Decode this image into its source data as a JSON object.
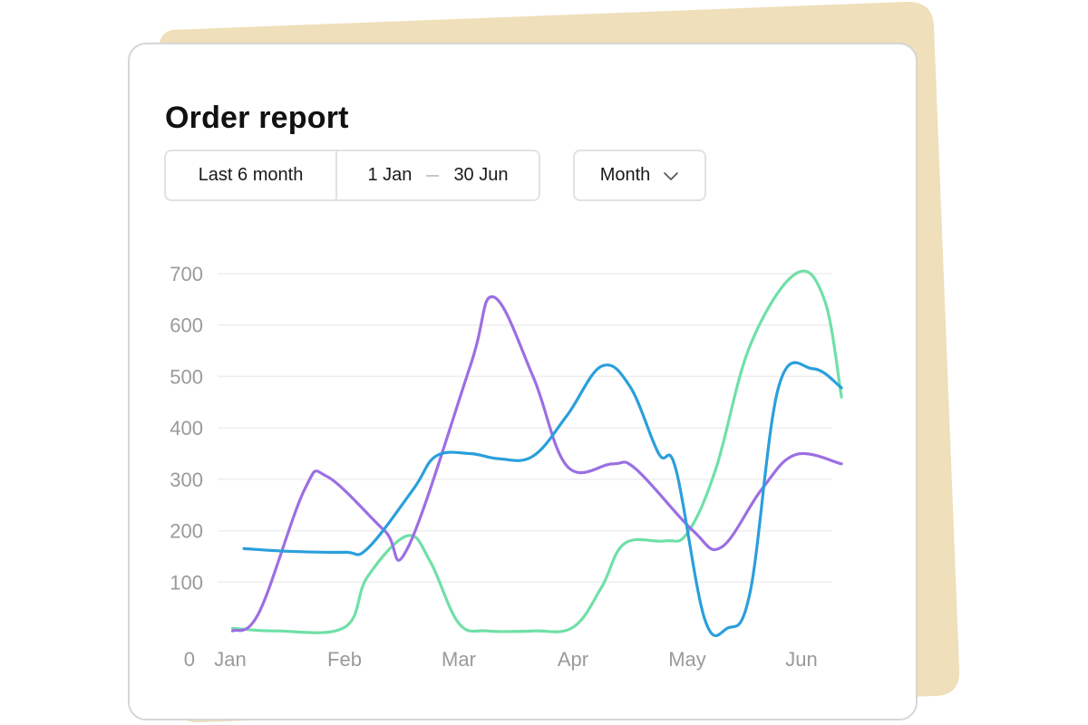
{
  "report": {
    "title": "Order report",
    "range_preset": "Last 6 month",
    "range_start": "1 Jan",
    "range_end": "30 Jun",
    "period": "Month"
  },
  "icons": {
    "period_dropdown": "chevron-down-icon"
  },
  "colors": {
    "backdrop": "#efdfba",
    "series_purple": "#9b6fe3",
    "series_blue": "#2a9fdc",
    "series_green": "#6fe0a6",
    "grid": "#eeeeee",
    "tick_text": "#9a9a9a"
  },
  "chart_data": {
    "type": "line",
    "title": "",
    "xlabel": "",
    "ylabel": "",
    "ylim": [
      0,
      700
    ],
    "yticks": [
      "0",
      "100",
      "200",
      "300",
      "400",
      "500",
      "600",
      "700"
    ],
    "categories": [
      "Jan",
      "Feb",
      "Mar",
      "Apr",
      "May",
      "Jun"
    ],
    "grid": true,
    "smooth": true,
    "series": [
      {
        "color": "#9b6fe3",
        "x": [
          0.02,
          0.25,
          0.65,
          0.85,
          1.35,
          1.55,
          2.1,
          2.3,
          2.65,
          2.95,
          3.35,
          3.55,
          4.05,
          4.3,
          4.65,
          4.95,
          5.35
        ],
        "y": [
          5,
          40,
          280,
          305,
          200,
          165,
          520,
          655,
          500,
          325,
          330,
          320,
          200,
          168,
          280,
          348,
          330
        ]
      },
      {
        "color": "#2a9fdc",
        "x": [
          0.12,
          0.5,
          1.0,
          1.2,
          1.6,
          1.8,
          2.1,
          2.35,
          2.65,
          2.95,
          3.25,
          3.5,
          3.75,
          3.9,
          4.15,
          4.35,
          4.55,
          4.8,
          5.1,
          5.35
        ],
        "y": [
          165,
          160,
          158,
          165,
          280,
          345,
          350,
          340,
          345,
          425,
          520,
          480,
          350,
          320,
          30,
          10,
          80,
          480,
          515,
          478
        ]
      },
      {
        "color": "#6fe0a6",
        "x": [
          0.02,
          0.4,
          1.0,
          1.2,
          1.55,
          1.75,
          2.0,
          2.25,
          2.65,
          3.0,
          3.25,
          3.45,
          3.8,
          4.0,
          4.25,
          4.55,
          4.95,
          5.2,
          5.35
        ],
        "y": [
          10,
          5,
          12,
          110,
          190,
          140,
          20,
          5,
          5,
          12,
          90,
          175,
          180,
          195,
          320,
          560,
          700,
          650,
          460
        ]
      }
    ]
  }
}
